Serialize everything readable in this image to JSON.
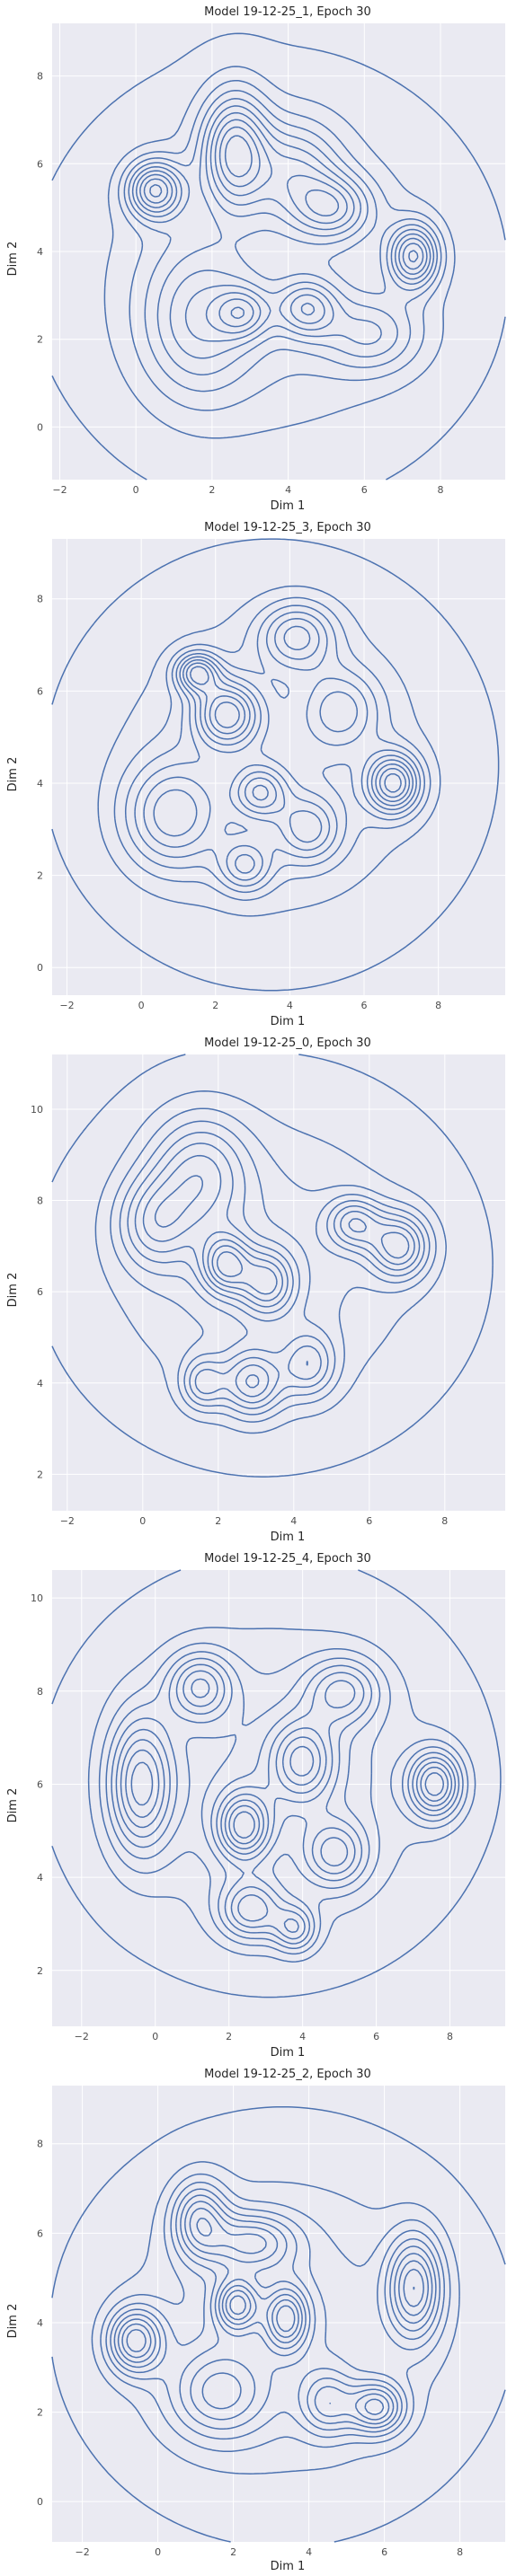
{
  "charts": [
    {
      "title": "Model 19-12-25_1, Epoch 30",
      "xlabel": "Dim 1",
      "ylabel": "Dim 2",
      "xticks": [
        "−2",
        "0",
        "2",
        "4",
        "6",
        "8"
      ],
      "yticks": [
        "0",
        "2",
        "4",
        "6",
        "8"
      ]
    },
    {
      "title": "Model 19-12-25_3, Epoch 30",
      "xlabel": "Dim 1",
      "ylabel": "Dim 2",
      "xticks": [
        "−2",
        "0",
        "2",
        "4",
        "6",
        "8"
      ],
      "yticks": [
        "0",
        "2",
        "4",
        "6",
        "8"
      ]
    },
    {
      "title": "Model 19-12-25_0, Epoch 30",
      "xlabel": "Dim 1",
      "ylabel": "Dim 2",
      "xticks": [
        "−2",
        "0",
        "2",
        "4",
        "6",
        "8"
      ],
      "yticks": [
        "2",
        "4",
        "6",
        "8",
        "10"
      ]
    },
    {
      "title": "Model 19-12-25_4, Epoch 30",
      "xlabel": "Dim 1",
      "ylabel": "Dim 2",
      "xticks": [
        "−2",
        "0",
        "2",
        "4",
        "6",
        "8"
      ],
      "yticks": [
        "2",
        "4",
        "6",
        "8",
        "10"
      ]
    },
    {
      "title": "Model 19-12-25_2, Epoch 30",
      "xlabel": "Dim 1",
      "ylabel": "Dim 2",
      "xticks": [
        "−2",
        "0",
        "2",
        "4",
        "6",
        "8"
      ],
      "yticks": [
        "0",
        "2",
        "4",
        "6",
        "8"
      ]
    }
  ],
  "chart_data": [
    {
      "type": "kde-contour",
      "title": "Model 19-12-25_1, Epoch 30",
      "xlabel": "Dim 1",
      "ylabel": "Dim 2",
      "xlim": [
        -2.2,
        9.7
      ],
      "ylim": [
        -1.2,
        9.2
      ],
      "grid": true,
      "color": "#4c72b0",
      "levels": 10,
      "blobs": [
        {
          "x": 3.5,
          "y": 3.4,
          "sx": 3.1,
          "sy": 2.6,
          "w": 0.22
        },
        {
          "x": 1.6,
          "y": 2.4,
          "sx": 1.0,
          "sy": 1.2,
          "w": 0.28
        },
        {
          "x": 0.5,
          "y": 5.4,
          "sx": 0.5,
          "sy": 0.45,
          "w": 0.55
        },
        {
          "x": 2.6,
          "y": 6.3,
          "sx": 0.6,
          "sy": 0.9,
          "w": 0.55
        },
        {
          "x": 5.2,
          "y": 5.0,
          "sx": 0.7,
          "sy": 0.5,
          "w": 0.35
        },
        {
          "x": 7.3,
          "y": 3.9,
          "sx": 0.45,
          "sy": 0.5,
          "w": 0.55
        },
        {
          "x": 4.5,
          "y": 2.7,
          "sx": 0.55,
          "sy": 0.45,
          "w": 0.35
        },
        {
          "x": 2.8,
          "y": 2.6,
          "sx": 0.5,
          "sy": 0.4,
          "w": 0.3
        },
        {
          "x": 4.2,
          "y": 5.8,
          "sx": 0.8,
          "sy": 0.8,
          "w": 0.3
        },
        {
          "x": 6.2,
          "y": 2.1,
          "sx": 0.9,
          "sy": 0.6,
          "w": 0.25
        }
      ]
    },
    {
      "type": "kde-contour",
      "title": "Model 19-12-25_3, Epoch 30",
      "xlabel": "Dim 1",
      "ylabel": "Dim 2",
      "xlim": [
        -2.4,
        9.8
      ],
      "ylim": [
        -0.6,
        9.3
      ],
      "grid": true,
      "color": "#4c72b0",
      "levels": 10,
      "blobs": [
        {
          "x": 3.5,
          "y": 4.4,
          "sx": 3.0,
          "sy": 2.4,
          "w": 0.22
        },
        {
          "x": 0.8,
          "y": 3.3,
          "sx": 0.9,
          "sy": 0.8,
          "w": 0.35
        },
        {
          "x": 2.3,
          "y": 5.5,
          "sx": 0.6,
          "sy": 0.5,
          "w": 0.5
        },
        {
          "x": 1.5,
          "y": 6.4,
          "sx": 0.4,
          "sy": 0.3,
          "w": 0.45
        },
        {
          "x": 4.2,
          "y": 7.2,
          "sx": 0.7,
          "sy": 0.5,
          "w": 0.35
        },
        {
          "x": 6.8,
          "y": 4.0,
          "sx": 0.5,
          "sy": 0.45,
          "w": 0.55
        },
        {
          "x": 3.2,
          "y": 3.8,
          "sx": 0.5,
          "sy": 0.4,
          "w": 0.35
        },
        {
          "x": 4.5,
          "y": 3.0,
          "sx": 0.6,
          "sy": 0.5,
          "w": 0.3
        },
        {
          "x": 2.8,
          "y": 2.2,
          "sx": 0.5,
          "sy": 0.4,
          "w": 0.3
        },
        {
          "x": 5.4,
          "y": 5.6,
          "sx": 0.7,
          "sy": 0.6,
          "w": 0.25
        }
      ]
    },
    {
      "type": "kde-contour",
      "title": "Model 19-12-25_0, Epoch 30",
      "xlabel": "Dim 1",
      "ylabel": "Dim 2",
      "xlim": [
        -2.4,
        9.6
      ],
      "ylim": [
        1.2,
        11.2
      ],
      "grid": true,
      "color": "#4c72b0",
      "levels": 10,
      "blobs": [
        {
          "x": 3.2,
          "y": 6.6,
          "sx": 3.0,
          "sy": 2.3,
          "w": 0.22
        },
        {
          "x": 1.5,
          "y": 8.6,
          "sx": 0.9,
          "sy": 0.9,
          "w": 0.35
        },
        {
          "x": 0.3,
          "y": 7.5,
          "sx": 0.7,
          "sy": 0.7,
          "w": 0.3
        },
        {
          "x": 2.2,
          "y": 6.6,
          "sx": 0.45,
          "sy": 0.45,
          "w": 0.45
        },
        {
          "x": 3.3,
          "y": 6.2,
          "sx": 0.5,
          "sy": 0.5,
          "w": 0.4
        },
        {
          "x": 2.9,
          "y": 4.0,
          "sx": 0.55,
          "sy": 0.5,
          "w": 0.4
        },
        {
          "x": 1.6,
          "y": 4.0,
          "sx": 0.4,
          "sy": 0.4,
          "w": 0.3
        },
        {
          "x": 4.4,
          "y": 4.4,
          "sx": 0.5,
          "sy": 0.5,
          "w": 0.3
        },
        {
          "x": 6.8,
          "y": 7.0,
          "sx": 0.55,
          "sy": 0.5,
          "w": 0.45
        },
        {
          "x": 5.6,
          "y": 7.5,
          "sx": 0.5,
          "sy": 0.4,
          "w": 0.35
        }
      ]
    },
    {
      "type": "kde-contour",
      "title": "Model 19-12-25_4, Epoch 30",
      "xlabel": "Dim 1",
      "ylabel": "Dim 2",
      "xlim": [
        -2.8,
        9.5
      ],
      "ylim": [
        0.8,
        10.6
      ],
      "grid": true,
      "color": "#4c72b0",
      "levels": 10,
      "blobs": [
        {
          "x": 3.1,
          "y": 6.2,
          "sx": 3.0,
          "sy": 2.3,
          "w": 0.22
        },
        {
          "x": -0.4,
          "y": 6.0,
          "sx": 0.6,
          "sy": 1.0,
          "w": 0.45
        },
        {
          "x": 1.2,
          "y": 8.1,
          "sx": 0.6,
          "sy": 0.5,
          "w": 0.35
        },
        {
          "x": 2.4,
          "y": 5.1,
          "sx": 0.5,
          "sy": 0.5,
          "w": 0.45
        },
        {
          "x": 2.6,
          "y": 3.3,
          "sx": 0.6,
          "sy": 0.45,
          "w": 0.35
        },
        {
          "x": 4.0,
          "y": 6.5,
          "sx": 0.6,
          "sy": 0.6,
          "w": 0.35
        },
        {
          "x": 7.6,
          "y": 6.0,
          "sx": 0.5,
          "sy": 0.5,
          "w": 0.5
        },
        {
          "x": 5.1,
          "y": 8.0,
          "sx": 0.7,
          "sy": 0.5,
          "w": 0.3
        },
        {
          "x": 4.9,
          "y": 4.5,
          "sx": 0.6,
          "sy": 0.5,
          "w": 0.3
        },
        {
          "x": 3.8,
          "y": 2.9,
          "sx": 0.4,
          "sy": 0.35,
          "w": 0.3
        }
      ]
    },
    {
      "type": "kde-contour",
      "title": "Model 19-12-25_2, Epoch 30",
      "xlabel": "Dim 1",
      "ylabel": "Dim 2",
      "xlim": [
        -2.8,
        9.2
      ],
      "ylim": [
        -0.9,
        9.3
      ],
      "grid": true,
      "color": "#4c72b0",
      "levels": 10,
      "blobs": [
        {
          "x": 3.3,
          "y": 3.9,
          "sx": 3.0,
          "sy": 2.4,
          "w": 0.22
        },
        {
          "x": -0.6,
          "y": 3.6,
          "sx": 0.5,
          "sy": 0.5,
          "w": 0.5
        },
        {
          "x": 1.1,
          "y": 6.3,
          "sx": 0.5,
          "sy": 0.6,
          "w": 0.4
        },
        {
          "x": 2.5,
          "y": 5.8,
          "sx": 0.8,
          "sy": 0.45,
          "w": 0.35
        },
        {
          "x": 2.1,
          "y": 4.4,
          "sx": 0.4,
          "sy": 0.4,
          "w": 0.45
        },
        {
          "x": 3.4,
          "y": 4.1,
          "sx": 0.4,
          "sy": 0.5,
          "w": 0.45
        },
        {
          "x": 1.6,
          "y": 2.4,
          "sx": 0.9,
          "sy": 0.7,
          "w": 0.3
        },
        {
          "x": 6.8,
          "y": 4.8,
          "sx": 0.5,
          "sy": 0.8,
          "w": 0.5
        },
        {
          "x": 5.8,
          "y": 2.1,
          "sx": 0.5,
          "sy": 0.4,
          "w": 0.45
        },
        {
          "x": 4.5,
          "y": 2.2,
          "sx": 0.5,
          "sy": 0.5,
          "w": 0.3
        }
      ]
    }
  ]
}
